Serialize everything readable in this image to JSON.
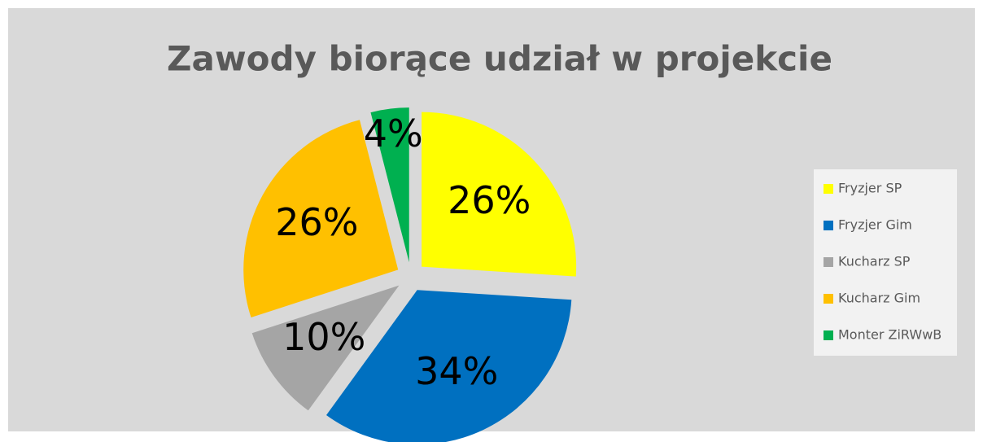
{
  "chart_data": {
    "type": "pie",
    "title": "Zawody biorące udział w projekcie",
    "categories": [
      "Fryzjer SP",
      "Fryzjer Gim",
      "Kucharz SP",
      "Kucharz Gim",
      "Monter ZiRWwB"
    ],
    "values": [
      26,
      34,
      10,
      26,
      4
    ],
    "value_labels": [
      "26%",
      "34%",
      "10%",
      "26%",
      "4%"
    ],
    "colors": [
      "#ffff00",
      "#0070c0",
      "#a5a5a5",
      "#ffc000",
      "#00b050"
    ],
    "legend": "right"
  }
}
